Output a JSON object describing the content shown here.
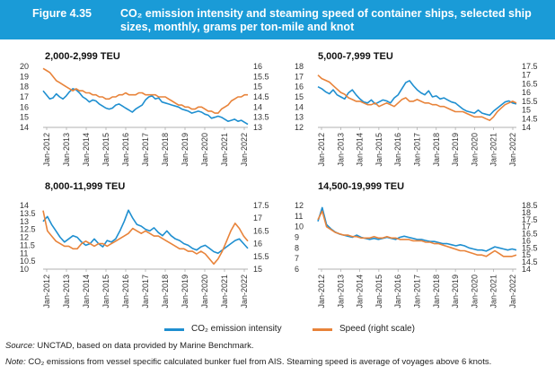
{
  "header": {
    "figure_number": "Figure 4.35",
    "title": "CO₂ emission intensity and steaming speed of container ships, selected ship sizes, monthly, grams per ton-mile and knot"
  },
  "colors": {
    "header_bg": "#1a9bd7",
    "co2": "#1f8fd0",
    "speed": "#e8833a"
  },
  "legend": {
    "co2_label": "CO₂ emission intensity",
    "speed_label": "Speed (right scale)"
  },
  "footer": {
    "source_label": "Source:",
    "source_text": "UNCTAD, based on data provided by Marine Benchmark.",
    "note_label": "Note:",
    "note_text": "CO₂ emissions from vessel specific calculated bunker fuel from AIS. Steaming speed is average of voyages above 6 knots."
  },
  "chart_data": [
    {
      "type": "line",
      "title": "2,000-2,999 TEU",
      "x_labels": [
        "Jan-2012",
        "Jan-2013",
        "Jan-2014",
        "Jan-2015",
        "Jan-2016",
        "Jan-2017",
        "Jan-2018",
        "Jan-2019",
        "Jan-2020",
        "Jan-2021",
        "Jan-2022"
      ],
      "y_left": {
        "ticks": [
          "20",
          "19",
          "18",
          "17",
          "16",
          "15",
          "14"
        ],
        "range": [
          14,
          20
        ]
      },
      "y_right": {
        "ticks": [
          "16",
          "15.5",
          "15",
          "14.5",
          "14",
          "13.5",
          "13"
        ],
        "range": [
          13,
          16
        ]
      },
      "series": [
        {
          "name": "CO₂ emission intensity",
          "axis": "left",
          "values": [
            17.6,
            17.2,
            16.8,
            16.9,
            17.3,
            17.0,
            16.8,
            17.1,
            17.5,
            17.8,
            17.7,
            17.4,
            17.0,
            16.8,
            16.5,
            16.7,
            16.6,
            16.3,
            16.1,
            15.9,
            15.8,
            15.9,
            16.2,
            16.3,
            16.1,
            15.9,
            15.7,
            15.5,
            15.8,
            16.0,
            16.2,
            16.7,
            17.0,
            17.1,
            16.8,
            16.9,
            16.5,
            16.4,
            16.3,
            16.2,
            16.1,
            16.0,
            15.8,
            15.7,
            15.6,
            15.4,
            15.5,
            15.6,
            15.5,
            15.3,
            15.2,
            14.9,
            15.0,
            15.1,
            15.0,
            14.8,
            14.6,
            14.7,
            14.8,
            14.6,
            14.7,
            14.5,
            14.3
          ]
        },
        {
          "name": "Speed (right scale)",
          "axis": "right",
          "values": [
            15.9,
            15.8,
            15.7,
            15.5,
            15.3,
            15.2,
            15.1,
            15.0,
            14.9,
            14.8,
            14.9,
            14.8,
            14.8,
            14.7,
            14.7,
            14.6,
            14.6,
            14.5,
            14.5,
            14.4,
            14.4,
            14.5,
            14.5,
            14.6,
            14.6,
            14.7,
            14.6,
            14.6,
            14.6,
            14.7,
            14.7,
            14.6,
            14.6,
            14.6,
            14.6,
            14.5,
            14.5,
            14.5,
            14.4,
            14.3,
            14.2,
            14.1,
            14.1,
            14.0,
            14.0,
            13.9,
            13.9,
            14.0,
            14.0,
            13.9,
            13.8,
            13.8,
            13.7,
            13.7,
            13.9,
            14.0,
            14.1,
            14.3,
            14.4,
            14.5,
            14.5,
            14.6,
            14.6
          ]
        }
      ]
    },
    {
      "type": "line",
      "title": "5,000-7,999 TEU",
      "x_labels": [
        "Jan-2012",
        "Jan-2013",
        "Jan-2014",
        "Jan-2015",
        "Jan-2016",
        "Jan-2017",
        "Jan-2018",
        "Jan-2019",
        "Jan-2020",
        "Jan-2021",
        "Jan-2022"
      ],
      "y_left": {
        "ticks": [
          "18",
          "17",
          "16",
          "15",
          "14",
          "13",
          "12"
        ],
        "range": [
          12,
          18
        ]
      },
      "y_right": {
        "ticks": [
          "17.5",
          "17",
          "16.5",
          "16",
          "15.5",
          "15",
          "14.5",
          "14"
        ],
        "range": [
          14,
          17.5
        ]
      },
      "series": [
        {
          "name": "CO₂ emission intensity",
          "axis": "left",
          "values": [
            16.0,
            15.8,
            15.5,
            15.3,
            15.7,
            15.2,
            15.0,
            14.8,
            15.4,
            15.7,
            15.2,
            14.8,
            14.5,
            14.4,
            14.7,
            14.3,
            14.5,
            14.7,
            14.6,
            14.4,
            14.9,
            15.2,
            15.8,
            16.4,
            16.6,
            16.1,
            15.7,
            15.4,
            15.2,
            15.6,
            15.0,
            15.1,
            14.8,
            14.9,
            14.7,
            14.5,
            14.4,
            14.1,
            13.8,
            13.6,
            13.5,
            13.4,
            13.7,
            13.4,
            13.3,
            13.2,
            13.6,
            13.9,
            14.2,
            14.5,
            14.6,
            14.4,
            14.3
          ]
        },
        {
          "name": "Speed (right scale)",
          "axis": "right",
          "values": [
            17.0,
            16.8,
            16.7,
            16.6,
            16.4,
            16.2,
            16.0,
            15.9,
            15.7,
            15.6,
            15.5,
            15.5,
            15.4,
            15.3,
            15.3,
            15.4,
            15.2,
            15.3,
            15.4,
            15.3,
            15.2,
            15.4,
            15.6,
            15.7,
            15.5,
            15.5,
            15.6,
            15.5,
            15.4,
            15.4,
            15.3,
            15.3,
            15.2,
            15.2,
            15.1,
            15.0,
            14.9,
            14.9,
            14.9,
            14.8,
            14.7,
            14.6,
            14.6,
            14.6,
            14.5,
            14.4,
            14.6,
            14.9,
            15.1,
            15.3,
            15.4,
            15.5,
            15.4
          ]
        }
      ]
    },
    {
      "type": "line",
      "title": "8,000-11,999 TEU",
      "x_labels": [
        "Jan-2012",
        "Jan-2013",
        "Jan-2014",
        "Jan-2015",
        "Jan-2016",
        "Jan-2017",
        "Jan-2018",
        "Jan-2019",
        "Jan-2020",
        "Jan-2021",
        "Jan-2022"
      ],
      "y_left": {
        "ticks": [
          "14",
          "13.5",
          "13",
          "12.5",
          "12",
          "11.5",
          "11",
          "10.5",
          "10"
        ],
        "range": [
          10,
          14
        ]
      },
      "y_right": {
        "ticks": [
          "17.5",
          "17",
          "16.5",
          "16",
          "15.5",
          "15"
        ],
        "range": [
          15,
          17.5
        ]
      },
      "series": [
        {
          "name": "CO₂ emission intensity",
          "axis": "left",
          "values": [
            13.0,
            13.3,
            12.8,
            12.4,
            12.0,
            11.7,
            11.9,
            12.1,
            12.0,
            11.7,
            11.5,
            11.6,
            11.9,
            11.6,
            11.4,
            11.8,
            11.7,
            11.9,
            12.4,
            13.0,
            13.7,
            13.2,
            12.8,
            12.7,
            12.5,
            12.4,
            12.6,
            12.3,
            12.1,
            12.4,
            12.1,
            11.9,
            11.8,
            11.6,
            11.5,
            11.3,
            11.2,
            11.4,
            11.5,
            11.3,
            11.1,
            11.0,
            11.2,
            11.4,
            11.6,
            11.8,
            11.9,
            11.6,
            11.3
          ]
        },
        {
          "name": "Speed (right scale)",
          "axis": "right",
          "values": [
            17.3,
            16.5,
            16.3,
            16.1,
            16.0,
            15.9,
            15.9,
            15.8,
            15.8,
            16.0,
            16.1,
            16.0,
            15.9,
            16.0,
            16.0,
            15.9,
            16.0,
            16.1,
            16.2,
            16.3,
            16.4,
            16.6,
            16.5,
            16.4,
            16.5,
            16.4,
            16.3,
            16.3,
            16.2,
            16.1,
            16.0,
            15.9,
            15.8,
            15.8,
            15.7,
            15.7,
            15.6,
            15.7,
            15.6,
            15.4,
            15.2,
            15.4,
            15.7,
            16.1,
            16.5,
            16.8,
            16.6,
            16.3,
            16.1
          ]
        }
      ]
    },
    {
      "type": "line",
      "title": "14,500-19,999 TEU",
      "x_labels": [
        "Jan-2012",
        "Jan-2013",
        "Jan-2014",
        "Jan-2015",
        "Jan-2016",
        "Jan-2017",
        "Jan-2018",
        "Jan-2019",
        "Jan-2020",
        "Jan-2021",
        "Jan-2022"
      ],
      "y_left": {
        "ticks": [
          "12",
          "11",
          "10",
          "9",
          "8",
          "7",
          "6"
        ],
        "range": [
          6,
          12
        ]
      },
      "y_right": {
        "ticks": [
          "18.5",
          "18",
          "17.5",
          "17",
          "16.5",
          "16",
          "15.5",
          "15",
          "14.5",
          "14"
        ],
        "range": [
          14,
          18.5
        ]
      },
      "series": [
        {
          "name": "CO₂ emission intensity",
          "axis": "left",
          "values": [
            10.5,
            11.8,
            10.2,
            9.8,
            9.5,
            9.3,
            9.2,
            9.1,
            9.0,
            9.2,
            9.0,
            8.9,
            8.8,
            8.9,
            8.8,
            8.9,
            9.0,
            8.9,
            8.8,
            9.0,
            9.1,
            9.0,
            8.9,
            8.8,
            8.8,
            8.7,
            8.6,
            8.6,
            8.5,
            8.4,
            8.4,
            8.3,
            8.2,
            8.3,
            8.2,
            8.0,
            7.9,
            7.8,
            7.8,
            7.7,
            7.9,
            8.1,
            8.0,
            7.9,
            7.8,
            7.9,
            7.8
          ]
        },
        {
          "name": "Speed (right scale)",
          "axis": "right",
          "values": [
            17.5,
            18.1,
            17.0,
            16.8,
            16.6,
            16.5,
            16.4,
            16.4,
            16.3,
            16.3,
            16.2,
            16.2,
            16.2,
            16.3,
            16.2,
            16.2,
            16.3,
            16.2,
            16.2,
            16.1,
            16.1,
            16.1,
            16.0,
            16.0,
            16.0,
            15.9,
            15.9,
            15.8,
            15.8,
            15.7,
            15.6,
            15.5,
            15.4,
            15.3,
            15.3,
            15.2,
            15.1,
            15.0,
            15.0,
            14.9,
            15.1,
            15.3,
            15.1,
            14.9,
            14.9,
            14.9,
            15.0
          ]
        }
      ]
    }
  ]
}
